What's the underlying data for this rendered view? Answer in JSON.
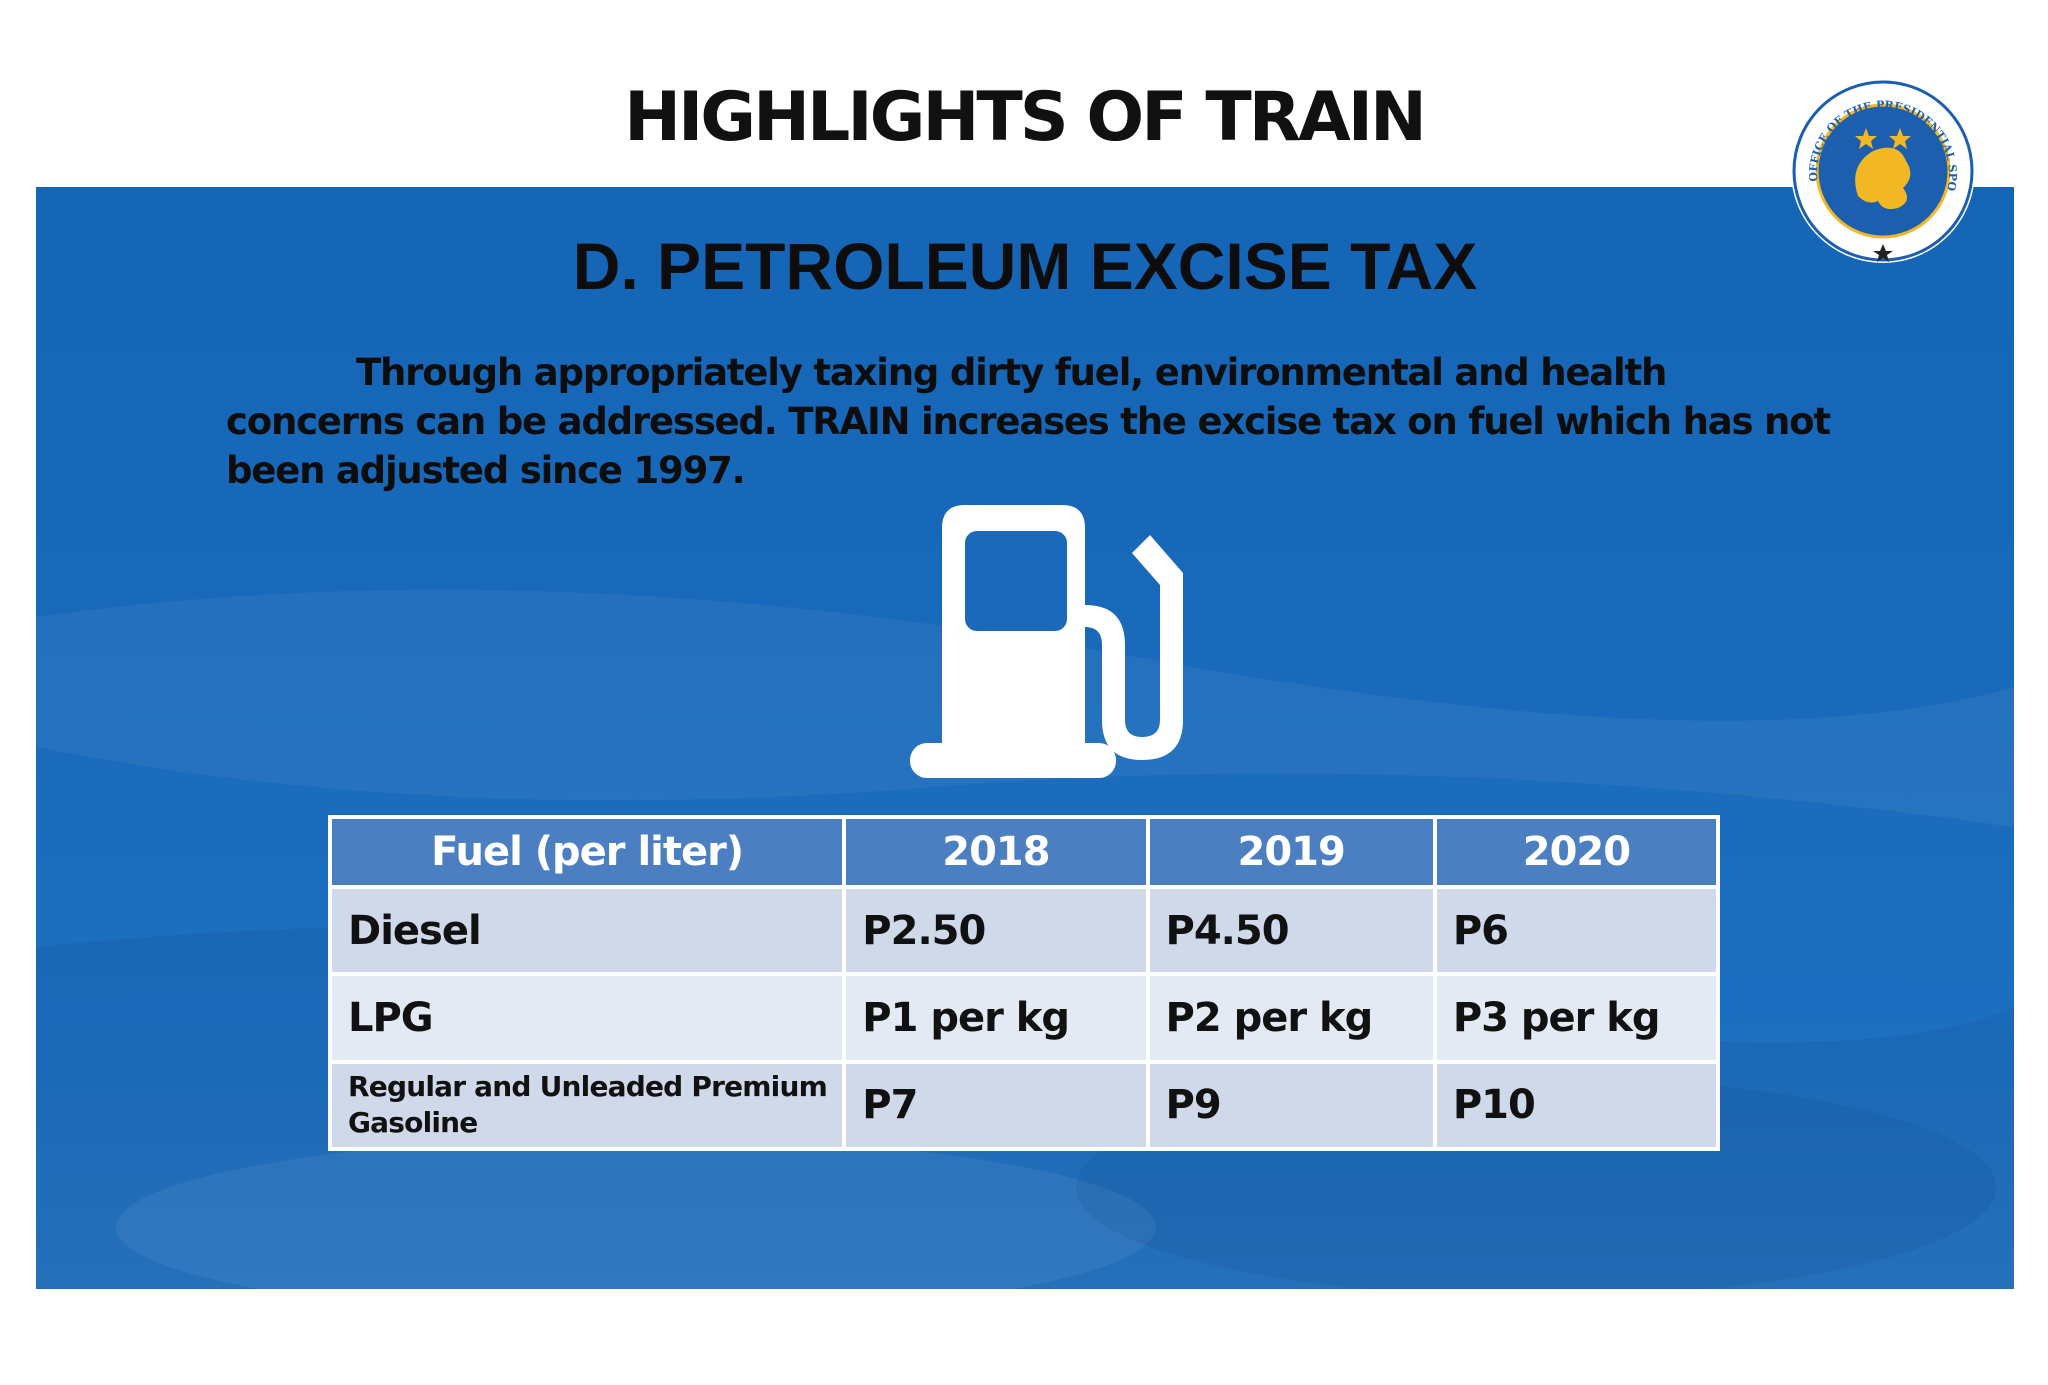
{
  "header": {
    "title": "HIGHLIGHTS OF TRAIN"
  },
  "logo": {
    "name": "seal-icon",
    "text": "OFFICE OF THE PRESIDENTIAL SPOKESPERSON"
  },
  "section": {
    "title": "D. PETROLEUM EXCISE TAX"
  },
  "body": {
    "paragraph": "Through appropriately taxing dirty fuel, environmental and health concerns can be addressed. TRAIN increases the excise tax on fuel which has not been adjusted since 1997."
  },
  "icon": {
    "name": "fuel-pump-icon"
  },
  "table": {
    "headers": [
      "Fuel (per liter)",
      "2018",
      "2019",
      "2020"
    ],
    "rows": [
      [
        "Diesel",
        "P2.50",
        "P4.50",
        "P6"
      ],
      [
        "LPG",
        "P1 per kg",
        "P2 per kg",
        "P3 per kg"
      ],
      [
        "Regular and Unleaded Premium Gasoline",
        "P7",
        "P9",
        "P10"
      ]
    ]
  },
  "colors": {
    "panel": "#1a69bb",
    "table_header": "#4b7fc1",
    "row_dark": "#cfd9ea",
    "row_light": "#e4eaf4",
    "seal_gold": "#f2b824",
    "seal_blue": "#1c5fae"
  }
}
